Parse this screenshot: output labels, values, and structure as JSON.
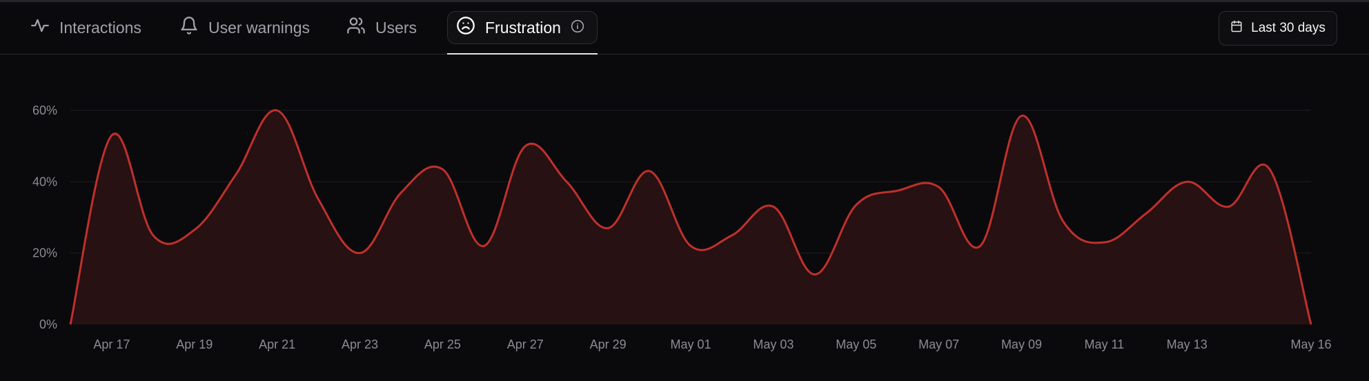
{
  "tabs": [
    {
      "label": "Interactions",
      "icon": "activity-icon"
    },
    {
      "label": "User warnings",
      "icon": "bell-icon"
    },
    {
      "label": "Users",
      "icon": "users-icon"
    },
    {
      "label": "Frustration",
      "icon": "frown-icon",
      "active": true
    }
  ],
  "date_range": {
    "label": "Last 30 days",
    "icon": "calendar-icon"
  },
  "colors": {
    "line": "#c0302c",
    "fill": "#2a1213",
    "grid": "#1f1f23",
    "background": "#0a0a0c"
  },
  "chart_data": {
    "type": "area",
    "x": [
      "Apr 16",
      "Apr 17",
      "Apr 18",
      "Apr 19",
      "Apr 20",
      "Apr 21",
      "Apr 22",
      "Apr 23",
      "Apr 24",
      "Apr 25",
      "Apr 26",
      "Apr 27",
      "Apr 28",
      "Apr 29",
      "Apr 30",
      "May 01",
      "May 02",
      "May 03",
      "May 04",
      "May 05",
      "May 06",
      "May 07",
      "May 08",
      "May 09",
      "May 10",
      "May 11",
      "May 12",
      "May 13",
      "May 14",
      "May 15",
      "May 16"
    ],
    "values": [
      0,
      53,
      25,
      26.5,
      42,
      60,
      35,
      20,
      37,
      43.5,
      22,
      50,
      40,
      27,
      43,
      22,
      25,
      33,
      14,
      33.5,
      37.5,
      38.5,
      22,
      58.5,
      29,
      23,
      31,
      40,
      33,
      43.5,
      0
    ],
    "x_tick_labels": [
      "Apr 17",
      "Apr 19",
      "Apr 21",
      "Apr 23",
      "Apr 25",
      "Apr 27",
      "Apr 29",
      "May 01",
      "May 03",
      "May 05",
      "May 07",
      "May 09",
      "May 11",
      "May 13",
      "May 16"
    ],
    "y_ticks": [
      "0%",
      "20%",
      "40%",
      "60%"
    ],
    "ylim": [
      0,
      60
    ],
    "grid": true
  }
}
